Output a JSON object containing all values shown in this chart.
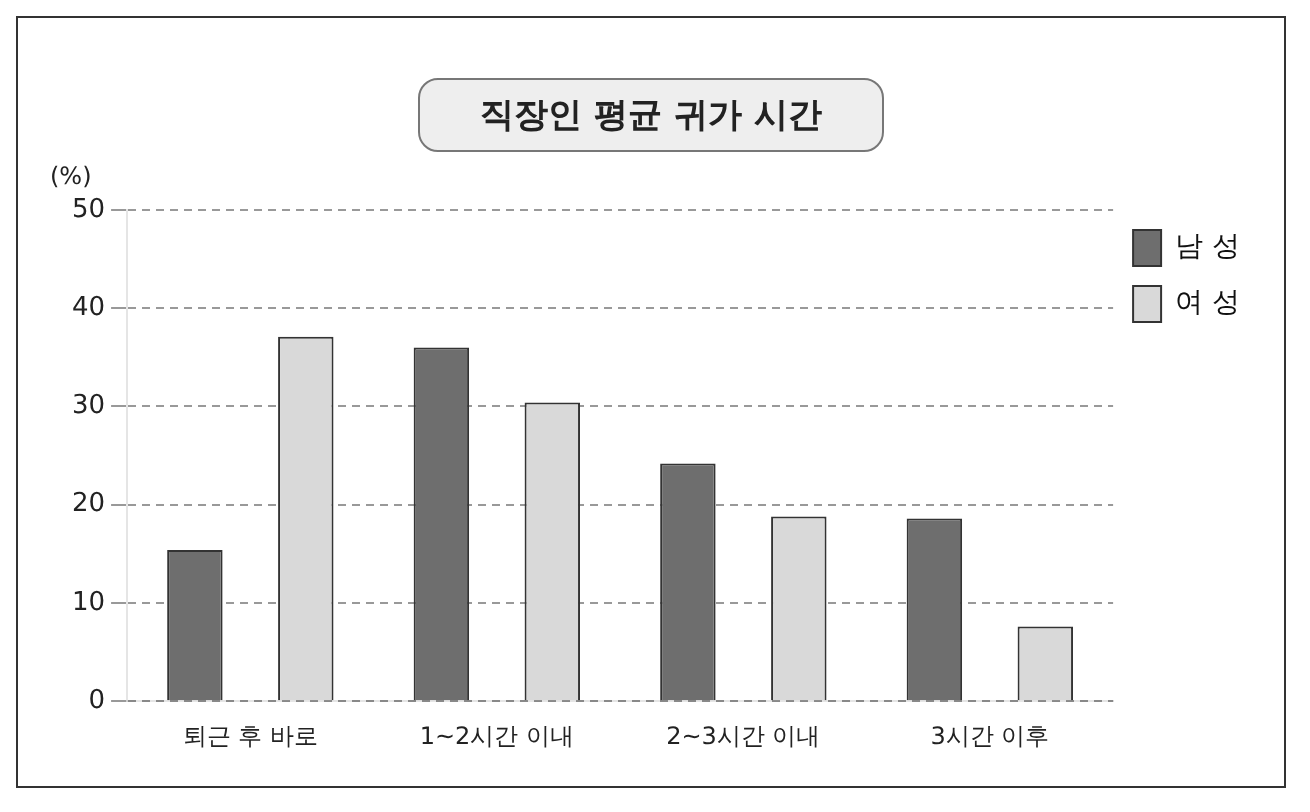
{
  "chart_data": {
    "type": "bar",
    "title": "직장인 평균 귀가 시간",
    "ylabel": "(%)",
    "categories": [
      "퇴근 후 바로",
      "1~2시간 이내",
      "2~3시간 이내",
      "3시간 이후"
    ],
    "series": [
      {
        "name": "남 성",
        "color": "#6e6e6e",
        "values": [
          15.4,
          36,
          24.2,
          18.6
        ]
      },
      {
        "name": "여 성",
        "color": "#d9d9d9",
        "values": [
          37.1,
          30.4,
          18.8,
          7.6
        ]
      }
    ],
    "ylim": [
      0,
      50
    ],
    "yticks": [
      0,
      10,
      20,
      30,
      40,
      50
    ],
    "grid": "y",
    "legend": "top right"
  }
}
